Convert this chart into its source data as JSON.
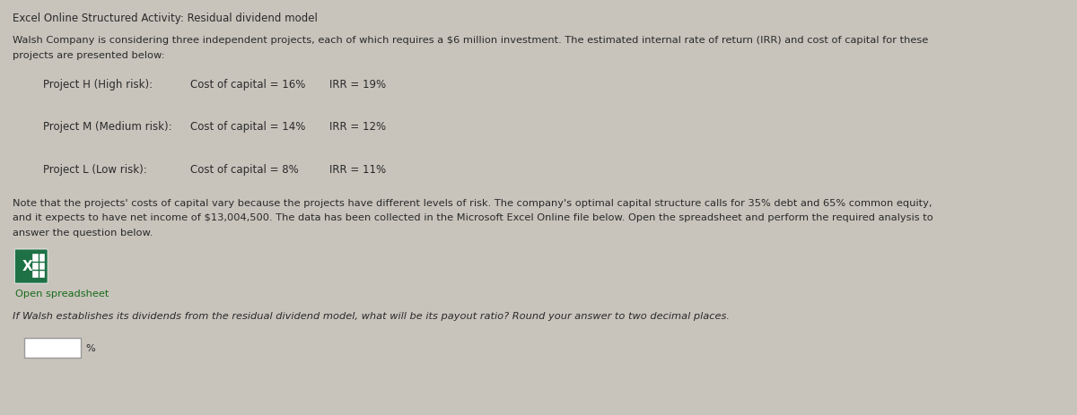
{
  "title": "Excel Online Structured Activity: Residual dividend model",
  "bg_color": "#c8c4bc",
  "content_bg": "#c8c4bc",
  "intro_text_line1": "Walsh Company is considering three independent projects, each of which requires a $6 million investment. The estimated internal rate of return (IRR) and cost of capital for these",
  "intro_text_line2": "projects are presented below:",
  "projects": [
    {
      "name": "Project H (High risk):",
      "cost_of_capital": "Cost of capital = 16%",
      "irr": "IRR = 19%"
    },
    {
      "name": "Project M (Medium risk):",
      "cost_of_capital": "Cost of capital = 14%",
      "irr": "IRR = 12%"
    },
    {
      "name": "Project L (Low risk):",
      "cost_of_capital": "Cost of capital = 8%",
      "irr": "IRR = 11%"
    }
  ],
  "note_text_line1": "Note that the projects' costs of capital vary because the projects have different levels of risk. The company's optimal capital structure calls for 35% debt and 65% common equity,",
  "note_text_line2": "and it expects to have net income of $13,004,500. The data has been collected in the Microsoft Excel Online file below. Open the spreadsheet and perform the required analysis to",
  "note_text_line3": "answer the question below.",
  "open_spreadsheet_text": "Open spreadsheet",
  "question_text": "If Walsh establishes its dividends from the residual dividend model, what will be its payout ratio? Round your answer to two decimal places.",
  "percent_sign": "%",
  "title_fontsize": 8.5,
  "body_fontsize": 8.2,
  "project_fontsize": 8.5,
  "text_color": "#2a2a2a",
  "note_italic_color": "#1a1a1a",
  "link_color": "#1a6b1a",
  "excel_green": "#1e7145",
  "excel_dark_green": "#124d2e",
  "input_box_color": "#ffffff",
  "input_box_border": "#999999",
  "right_sidebar_color": "#a08030"
}
